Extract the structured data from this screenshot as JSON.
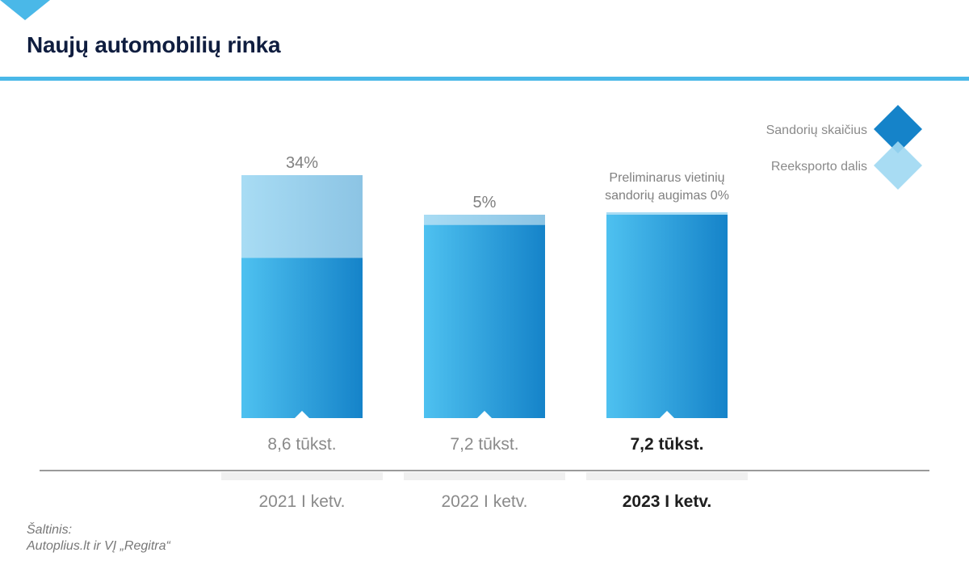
{
  "page": {
    "title": "Naujų automobilių rinka",
    "source_heading": "Šaltinis:",
    "source_text": "Autoplius.lt ir VĮ „Regitra“"
  },
  "chart_data": {
    "type": "bar",
    "stacked": true,
    "title": "Naujų automobilių rinka",
    "categories": [
      "2021 I ketv.",
      "2022 I ketv.",
      "2023 I ketv."
    ],
    "totals": [
      8.6,
      7.2,
      7.2
    ],
    "total_labels": [
      "8,6 tūkst.",
      "7,2 tūkst.",
      "7,2 tūkst."
    ],
    "series": [
      {
        "name": "Sandorių skaičius",
        "color": "#2aa2df"
      },
      {
        "name": "Reeksporto dalis",
        "color": "#9fd8f2",
        "values": [
          34,
          5,
          0
        ]
      }
    ],
    "top_labels": [
      "34%",
      "5%",
      "Preliminarus vietinių\nsandorių augimas 0%"
    ],
    "highlighted_category_index": 2,
    "legend_position": "top-right",
    "grid": false,
    "colors": {
      "bar_light": "#4ec1f0",
      "bar_dark": "#1583c9",
      "reexport_light": "#a8dcf4",
      "reexport_dark": "#8cc4e4",
      "category_bg": "#f0f0f0",
      "axis": "#9a9a9a",
      "accent": "#4ab8e8",
      "title": "#0f1d3f"
    }
  }
}
